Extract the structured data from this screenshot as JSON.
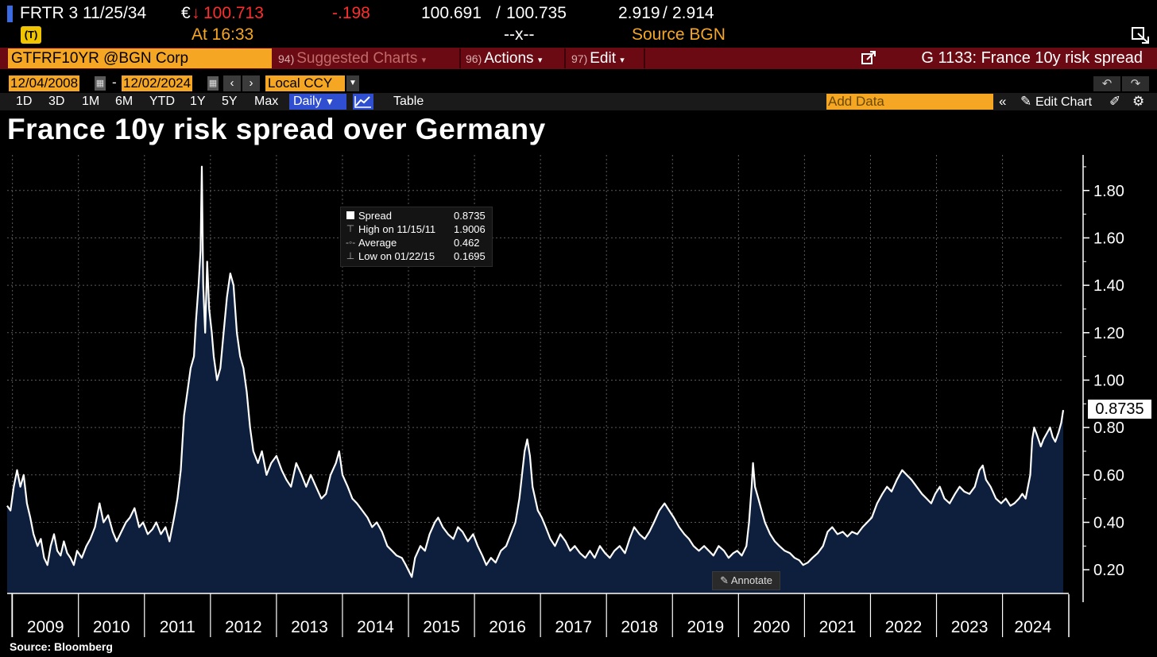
{
  "ticker": {
    "security": "FRTR 3 11/25/34",
    "currency_symbol": "€",
    "arrow": "↓",
    "price": "100.713",
    "change": "-.198",
    "bid": "100.691",
    "ask": "100.735",
    "bid_ask_sep": "/",
    "yield_bid": "2.919",
    "yield_ask": "2.914",
    "yield_sep": "/",
    "at_label": "At 16:33",
    "size_placeholder": "--x--",
    "source": "Source BGN"
  },
  "command_bar": {
    "security": "GTFRF10YR @BGN Corp",
    "menus": [
      {
        "num": "94)",
        "label": "Suggested Charts"
      },
      {
        "num": "96)",
        "label": "Actions"
      },
      {
        "num": "97)",
        "label": "Edit"
      }
    ],
    "chart_ref": "G 1133: France 10y risk spread"
  },
  "date_row": {
    "start": "12/04/2008",
    "end": "12/02/2024",
    "dash": "-",
    "currency": "Local CCY"
  },
  "toolbar": {
    "ranges": [
      "1D",
      "3D",
      "1M",
      "6M",
      "YTD",
      "1Y",
      "5Y",
      "Max"
    ],
    "frequency": "Daily",
    "table": "Table",
    "add_data_placeholder": "Add Data",
    "edit_chart": "Edit Chart"
  },
  "title": "France 10y risk spread over Germany",
  "legend": {
    "rows": [
      {
        "label": "Spread",
        "value": "0.8735"
      },
      {
        "label": "High on 11/15/11",
        "value": "1.9006"
      },
      {
        "label": "Average",
        "value": "0.462"
      },
      {
        "label": "Low on 01/22/15",
        "value": "0.1695"
      }
    ]
  },
  "annotate_label": "Annotate",
  "last_value_label": "0.8735",
  "source_note": "Source: Bloomberg",
  "colors": {
    "background": "#000000",
    "line": "#ffffff",
    "fill": "#0d1f3c",
    "amber": "#f5a623",
    "negative": "#ff2d2d",
    "command_bar": "#6b0a12",
    "highlight": "#2f4fd0"
  },
  "chart_data": {
    "type": "area",
    "title": "France 10y risk spread over Germany",
    "series_name": "Spread",
    "ylim": [
      0.1,
      1.95
    ],
    "y_ticks": [
      0.2,
      0.4,
      0.6,
      0.8,
      1.0,
      1.2,
      1.4,
      1.6,
      1.8
    ],
    "y_tick_labels": [
      "0.20",
      "0.40",
      "0.60",
      "0.80",
      "1.00",
      "1.20",
      "1.40",
      "1.60",
      "1.80"
    ],
    "x_range": [
      2008.92,
      2024.92
    ],
    "x_labels": [
      "2009",
      "2010",
      "2011",
      "2012",
      "2013",
      "2014",
      "2015",
      "2016",
      "2017",
      "2018",
      "2019",
      "2020",
      "2021",
      "2022",
      "2023",
      "2024"
    ],
    "last_value": 0.8735,
    "high": {
      "date": "11/15/11",
      "value": 1.9006
    },
    "low": {
      "date": "01/22/15",
      "value": 0.1695
    },
    "average": 0.462,
    "points": [
      [
        2008.92,
        0.47
      ],
      [
        2008.97,
        0.45
      ],
      [
        2009.02,
        0.55
      ],
      [
        2009.07,
        0.62
      ],
      [
        2009.12,
        0.55
      ],
      [
        2009.17,
        0.6
      ],
      [
        2009.22,
        0.48
      ],
      [
        2009.27,
        0.42
      ],
      [
        2009.32,
        0.35
      ],
      [
        2009.38,
        0.3
      ],
      [
        2009.43,
        0.33
      ],
      [
        2009.48,
        0.25
      ],
      [
        2009.53,
        0.22
      ],
      [
        2009.58,
        0.3
      ],
      [
        2009.63,
        0.35
      ],
      [
        2009.68,
        0.28
      ],
      [
        2009.73,
        0.26
      ],
      [
        2009.78,
        0.32
      ],
      [
        2009.83,
        0.27
      ],
      [
        2009.88,
        0.25
      ],
      [
        2009.93,
        0.22
      ],
      [
        2009.98,
        0.28
      ],
      [
        2010.05,
        0.25
      ],
      [
        2010.12,
        0.3
      ],
      [
        2010.18,
        0.33
      ],
      [
        2010.25,
        0.38
      ],
      [
        2010.32,
        0.48
      ],
      [
        2010.38,
        0.4
      ],
      [
        2010.45,
        0.43
      ],
      [
        2010.52,
        0.36
      ],
      [
        2010.58,
        0.32
      ],
      [
        2010.65,
        0.36
      ],
      [
        2010.72,
        0.4
      ],
      [
        2010.78,
        0.42
      ],
      [
        2010.85,
        0.46
      ],
      [
        2010.92,
        0.38
      ],
      [
        2010.98,
        0.4
      ],
      [
        2011.05,
        0.35
      ],
      [
        2011.12,
        0.37
      ],
      [
        2011.18,
        0.4
      ],
      [
        2011.25,
        0.35
      ],
      [
        2011.32,
        0.38
      ],
      [
        2011.38,
        0.32
      ],
      [
        2011.45,
        0.42
      ],
      [
        2011.5,
        0.5
      ],
      [
        2011.55,
        0.62
      ],
      [
        2011.6,
        0.85
      ],
      [
        2011.65,
        0.95
      ],
      [
        2011.7,
        1.05
      ],
      [
        2011.75,
        1.1
      ],
      [
        2011.78,
        1.25
      ],
      [
        2011.82,
        1.4
      ],
      [
        2011.85,
        1.55
      ],
      [
        2011.87,
        1.9006
      ],
      [
        2011.89,
        1.4
      ],
      [
        2011.92,
        1.2
      ],
      [
        2011.95,
        1.5
      ],
      [
        2011.98,
        1.3
      ],
      [
        2012.02,
        1.2
      ],
      [
        2012.05,
        1.1
      ],
      [
        2012.1,
        1.0
      ],
      [
        2012.15,
        1.05
      ],
      [
        2012.2,
        1.2
      ],
      [
        2012.25,
        1.35
      ],
      [
        2012.3,
        1.45
      ],
      [
        2012.35,
        1.4
      ],
      [
        2012.4,
        1.2
      ],
      [
        2012.45,
        1.1
      ],
      [
        2012.5,
        1.05
      ],
      [
        2012.55,
        0.95
      ],
      [
        2012.6,
        0.8
      ],
      [
        2012.65,
        0.7
      ],
      [
        2012.72,
        0.65
      ],
      [
        2012.78,
        0.7
      ],
      [
        2012.85,
        0.6
      ],
      [
        2012.92,
        0.65
      ],
      [
        2013.0,
        0.68
      ],
      [
        2013.08,
        0.62
      ],
      [
        2013.15,
        0.58
      ],
      [
        2013.22,
        0.55
      ],
      [
        2013.3,
        0.65
      ],
      [
        2013.38,
        0.6
      ],
      [
        2013.45,
        0.55
      ],
      [
        2013.52,
        0.6
      ],
      [
        2013.6,
        0.55
      ],
      [
        2013.68,
        0.5
      ],
      [
        2013.75,
        0.52
      ],
      [
        2013.82,
        0.6
      ],
      [
        2013.9,
        0.65
      ],
      [
        2013.95,
        0.7
      ],
      [
        2014.0,
        0.6
      ],
      [
        2014.08,
        0.55
      ],
      [
        2014.15,
        0.5
      ],
      [
        2014.22,
        0.48
      ],
      [
        2014.3,
        0.45
      ],
      [
        2014.38,
        0.42
      ],
      [
        2014.45,
        0.38
      ],
      [
        2014.52,
        0.4
      ],
      [
        2014.6,
        0.36
      ],
      [
        2014.68,
        0.3
      ],
      [
        2014.75,
        0.28
      ],
      [
        2014.82,
        0.26
      ],
      [
        2014.9,
        0.25
      ],
      [
        2014.96,
        0.22
      ],
      [
        2015.05,
        0.1695
      ],
      [
        2015.1,
        0.25
      ],
      [
        2015.18,
        0.3
      ],
      [
        2015.25,
        0.28
      ],
      [
        2015.32,
        0.35
      ],
      [
        2015.4,
        0.4
      ],
      [
        2015.45,
        0.42
      ],
      [
        2015.52,
        0.38
      ],
      [
        2015.6,
        0.35
      ],
      [
        2015.68,
        0.33
      ],
      [
        2015.75,
        0.38
      ],
      [
        2015.82,
        0.36
      ],
      [
        2015.9,
        0.32
      ],
      [
        2015.98,
        0.35
      ],
      [
        2016.05,
        0.3
      ],
      [
        2016.12,
        0.26
      ],
      [
        2016.18,
        0.22
      ],
      [
        2016.25,
        0.25
      ],
      [
        2016.32,
        0.23
      ],
      [
        2016.4,
        0.28
      ],
      [
        2016.48,
        0.3
      ],
      [
        2016.55,
        0.35
      ],
      [
        2016.62,
        0.4
      ],
      [
        2016.68,
        0.5
      ],
      [
        2016.72,
        0.6
      ],
      [
        2016.76,
        0.7
      ],
      [
        2016.8,
        0.75
      ],
      [
        2016.84,
        0.68
      ],
      [
        2016.88,
        0.55
      ],
      [
        2016.92,
        0.5
      ],
      [
        2016.96,
        0.45
      ],
      [
        2017.02,
        0.42
      ],
      [
        2017.08,
        0.38
      ],
      [
        2017.15,
        0.33
      ],
      [
        2017.22,
        0.3
      ],
      [
        2017.3,
        0.35
      ],
      [
        2017.38,
        0.32
      ],
      [
        2017.45,
        0.28
      ],
      [
        2017.52,
        0.3
      ],
      [
        2017.6,
        0.27
      ],
      [
        2017.68,
        0.25
      ],
      [
        2017.75,
        0.28
      ],
      [
        2017.82,
        0.25
      ],
      [
        2017.9,
        0.3
      ],
      [
        2017.98,
        0.27
      ],
      [
        2018.05,
        0.25
      ],
      [
        2018.12,
        0.28
      ],
      [
        2018.2,
        0.3
      ],
      [
        2018.28,
        0.27
      ],
      [
        2018.35,
        0.33
      ],
      [
        2018.42,
        0.38
      ],
      [
        2018.5,
        0.35
      ],
      [
        2018.58,
        0.33
      ],
      [
        2018.65,
        0.36
      ],
      [
        2018.72,
        0.4
      ],
      [
        2018.8,
        0.45
      ],
      [
        2018.88,
        0.48
      ],
      [
        2018.95,
        0.45
      ],
      [
        2019.02,
        0.42
      ],
      [
        2019.1,
        0.38
      ],
      [
        2019.18,
        0.35
      ],
      [
        2019.25,
        0.33
      ],
      [
        2019.32,
        0.3
      ],
      [
        2019.4,
        0.28
      ],
      [
        2019.48,
        0.3
      ],
      [
        2019.55,
        0.28
      ],
      [
        2019.62,
        0.26
      ],
      [
        2019.7,
        0.3
      ],
      [
        2019.78,
        0.28
      ],
      [
        2019.85,
        0.25
      ],
      [
        2019.92,
        0.27
      ],
      [
        2019.98,
        0.28
      ],
      [
        2020.05,
        0.26
      ],
      [
        2020.12,
        0.3
      ],
      [
        2020.16,
        0.4
      ],
      [
        2020.2,
        0.55
      ],
      [
        2020.22,
        0.65
      ],
      [
        2020.25,
        0.55
      ],
      [
        2020.3,
        0.5
      ],
      [
        2020.35,
        0.45
      ],
      [
        2020.4,
        0.4
      ],
      [
        2020.48,
        0.35
      ],
      [
        2020.55,
        0.32
      ],
      [
        2020.62,
        0.3
      ],
      [
        2020.7,
        0.28
      ],
      [
        2020.78,
        0.27
      ],
      [
        2020.85,
        0.25
      ],
      [
        2020.92,
        0.24
      ],
      [
        2020.98,
        0.22
      ],
      [
        2021.05,
        0.23
      ],
      [
        2021.12,
        0.25
      ],
      [
        2021.2,
        0.27
      ],
      [
        2021.28,
        0.3
      ],
      [
        2021.35,
        0.36
      ],
      [
        2021.42,
        0.38
      ],
      [
        2021.5,
        0.35
      ],
      [
        2021.58,
        0.36
      ],
      [
        2021.65,
        0.34
      ],
      [
        2021.72,
        0.36
      ],
      [
        2021.8,
        0.35
      ],
      [
        2021.88,
        0.38
      ],
      [
        2021.95,
        0.4
      ],
      [
        2022.02,
        0.42
      ],
      [
        2022.1,
        0.48
      ],
      [
        2022.18,
        0.52
      ],
      [
        2022.25,
        0.55
      ],
      [
        2022.32,
        0.53
      ],
      [
        2022.4,
        0.58
      ],
      [
        2022.48,
        0.62
      ],
      [
        2022.55,
        0.6
      ],
      [
        2022.62,
        0.58
      ],
      [
        2022.7,
        0.55
      ],
      [
        2022.78,
        0.52
      ],
      [
        2022.85,
        0.5
      ],
      [
        2022.92,
        0.48
      ],
      [
        2022.98,
        0.52
      ],
      [
        2023.05,
        0.55
      ],
      [
        2023.12,
        0.5
      ],
      [
        2023.2,
        0.48
      ],
      [
        2023.28,
        0.52
      ],
      [
        2023.35,
        0.55
      ],
      [
        2023.42,
        0.53
      ],
      [
        2023.5,
        0.52
      ],
      [
        2023.58,
        0.55
      ],
      [
        2023.65,
        0.62
      ],
      [
        2023.7,
        0.64
      ],
      [
        2023.75,
        0.58
      ],
      [
        2023.82,
        0.55
      ],
      [
        2023.9,
        0.5
      ],
      [
        2023.98,
        0.48
      ],
      [
        2024.05,
        0.5
      ],
      [
        2024.12,
        0.47
      ],
      [
        2024.18,
        0.48
      ],
      [
        2024.25,
        0.5
      ],
      [
        2024.3,
        0.52
      ],
      [
        2024.35,
        0.5
      ],
      [
        2024.42,
        0.6
      ],
      [
        2024.45,
        0.75
      ],
      [
        2024.48,
        0.8
      ],
      [
        2024.52,
        0.77
      ],
      [
        2024.58,
        0.72
      ],
      [
        2024.62,
        0.75
      ],
      [
        2024.68,
        0.78
      ],
      [
        2024.72,
        0.8
      ],
      [
        2024.76,
        0.76
      ],
      [
        2024.8,
        0.74
      ],
      [
        2024.85,
        0.78
      ],
      [
        2024.89,
        0.82
      ],
      [
        2024.92,
        0.8735
      ]
    ]
  }
}
